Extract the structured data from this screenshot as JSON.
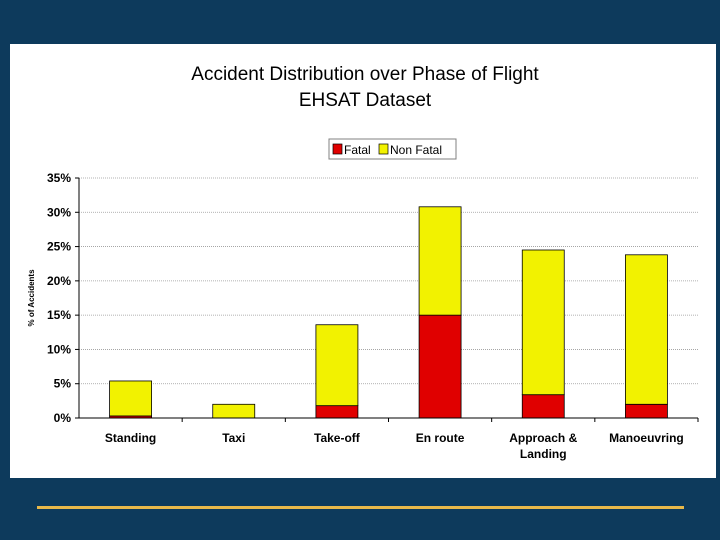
{
  "colors": {
    "background": "#0d3a5c",
    "panel": "#ffffff",
    "divider": "#e8b84a",
    "fatal": "#e00000",
    "non_fatal": "#f2f200"
  },
  "chart_data": {
    "type": "bar",
    "stacked": true,
    "title": "Accident Distribution over Phase of Flight",
    "subtitle": "EHSAT Dataset",
    "xlabel": "",
    "ylabel": "% of Accidents",
    "ylim": [
      0,
      35
    ],
    "yticks": [
      "0%",
      "5%",
      "10%",
      "15%",
      "20%",
      "25%",
      "30%",
      "35%"
    ],
    "ytick_values": [
      0,
      5,
      10,
      15,
      20,
      25,
      30,
      35
    ],
    "grid": true,
    "legend_placement": "top-center",
    "categories": [
      [
        "Standing"
      ],
      [
        "Taxi"
      ],
      [
        "Take-off"
      ],
      [
        "En route"
      ],
      [
        "Approach &",
        "Landing"
      ],
      [
        "Manoeuvring"
      ]
    ],
    "series": [
      {
        "name": "Fatal",
        "values": [
          0.3,
          0.0,
          1.8,
          15.0,
          3.4,
          2.0
        ]
      },
      {
        "name": "Non Fatal",
        "values": [
          5.1,
          2.0,
          11.8,
          15.8,
          21.1,
          21.8
        ]
      }
    ]
  }
}
